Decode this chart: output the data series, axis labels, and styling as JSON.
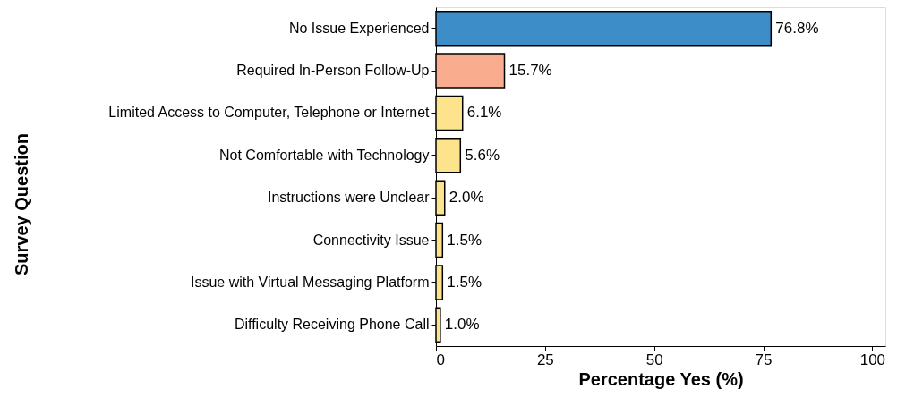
{
  "chart_data": {
    "type": "bar",
    "orientation": "horizontal",
    "xlabel": "Percentage Yes (%)",
    "ylabel": "Survey Question",
    "categories": [
      "No Issue Experienced",
      "Required In-Person Follow-Up",
      "Limited Access to Computer, Telephone or Internet",
      "Not Comfortable with Technology",
      "Instructions were Unclear",
      "Connectivity Issue",
      "Issue with Virtual Messaging Platform",
      "Difficulty Receiving Phone Call"
    ],
    "values": [
      76.8,
      15.7,
      6.1,
      5.6,
      2.0,
      1.5,
      1.5,
      1.0
    ],
    "value_labels": [
      "76.8%",
      "15.7%",
      "6.1%",
      "5.6%",
      "2.0%",
      "1.5%",
      "1.5%",
      "1.0%"
    ],
    "colors": [
      "#3d8ec8",
      "#f9ad8e",
      "#fde38c",
      "#fde38c",
      "#fde38c",
      "#fde38c",
      "#fde38c",
      "#fde38c"
    ],
    "xlim": [
      0,
      103
    ],
    "xticks": [
      0,
      25,
      50,
      75,
      100
    ],
    "grid": false,
    "legend": false
  }
}
